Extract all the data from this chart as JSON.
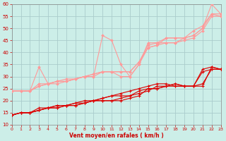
{
  "background_color": "#cceee8",
  "grid_color": "#aacccc",
  "xlabel": "Vent moyen/en rafales ( km/h )",
  "xlim": [
    0,
    23
  ],
  "ylim": [
    10,
    60
  ],
  "yticks": [
    10,
    15,
    20,
    25,
    30,
    35,
    40,
    45,
    50,
    55,
    60
  ],
  "xticks": [
    0,
    1,
    2,
    3,
    4,
    5,
    6,
    7,
    8,
    9,
    10,
    11,
    12,
    13,
    14,
    15,
    16,
    17,
    18,
    19,
    20,
    21,
    22,
    23
  ],
  "series_rafales": {
    "color": "#ff9999",
    "linewidth": 0.8,
    "markersize": 2.0,
    "x": [
      0,
      1,
      2,
      3,
      4,
      5,
      6,
      7,
      8,
      9,
      10,
      11,
      12,
      13,
      14,
      15,
      16,
      17,
      18,
      19,
      20,
      21,
      22,
      23
    ],
    "y1": [
      24,
      24,
      24,
      34,
      27,
      27,
      28,
      29,
      30,
      31,
      32,
      32,
      30,
      30,
      35,
      42,
      43,
      46,
      46,
      46,
      47,
      50,
      60,
      56
    ],
    "y2": [
      24,
      24,
      24,
      26,
      27,
      28,
      28,
      29,
      30,
      30,
      47,
      45,
      35,
      30,
      35,
      44,
      44,
      44,
      44,
      46,
      49,
      51,
      56,
      55
    ],
    "y3": [
      24,
      24,
      24,
      26,
      27,
      28,
      29,
      29,
      30,
      31,
      32,
      32,
      32,
      32,
      36,
      43,
      44,
      46,
      46,
      46,
      47,
      50,
      56,
      56
    ],
    "y4": [
      24,
      24,
      24,
      27,
      27,
      28,
      28,
      29,
      30,
      30,
      32,
      32,
      32,
      32,
      36,
      42,
      43,
      44,
      44,
      45,
      46,
      49,
      55,
      55
    ]
  },
  "series_moyen": {
    "color": "#dd0000",
    "linewidth": 0.8,
    "markersize": 2.5,
    "x": [
      0,
      1,
      2,
      3,
      4,
      5,
      6,
      7,
      8,
      9,
      10,
      11,
      12,
      13,
      14,
      15,
      16,
      17,
      18,
      19,
      20,
      21,
      22,
      23
    ],
    "y1": [
      14,
      15,
      15,
      16,
      17,
      18,
      18,
      19,
      19,
      20,
      21,
      22,
      22,
      22,
      24,
      25,
      25,
      26,
      27,
      26,
      26,
      26,
      34,
      33
    ],
    "y2": [
      14,
      15,
      15,
      17,
      17,
      18,
      18,
      19,
      20,
      20,
      21,
      22,
      23,
      24,
      25,
      26,
      27,
      27,
      26,
      26,
      26,
      33,
      34,
      33
    ],
    "y3": [
      14,
      15,
      15,
      16,
      17,
      17,
      18,
      18,
      19,
      20,
      20,
      20,
      20,
      21,
      22,
      25,
      25,
      26,
      27,
      26,
      26,
      27,
      33,
      33
    ],
    "y4": [
      14,
      15,
      15,
      16,
      17,
      17,
      18,
      18,
      19,
      20,
      20,
      20,
      21,
      22,
      23,
      24,
      26,
      26,
      26,
      26,
      26,
      32,
      33,
      33
    ]
  }
}
